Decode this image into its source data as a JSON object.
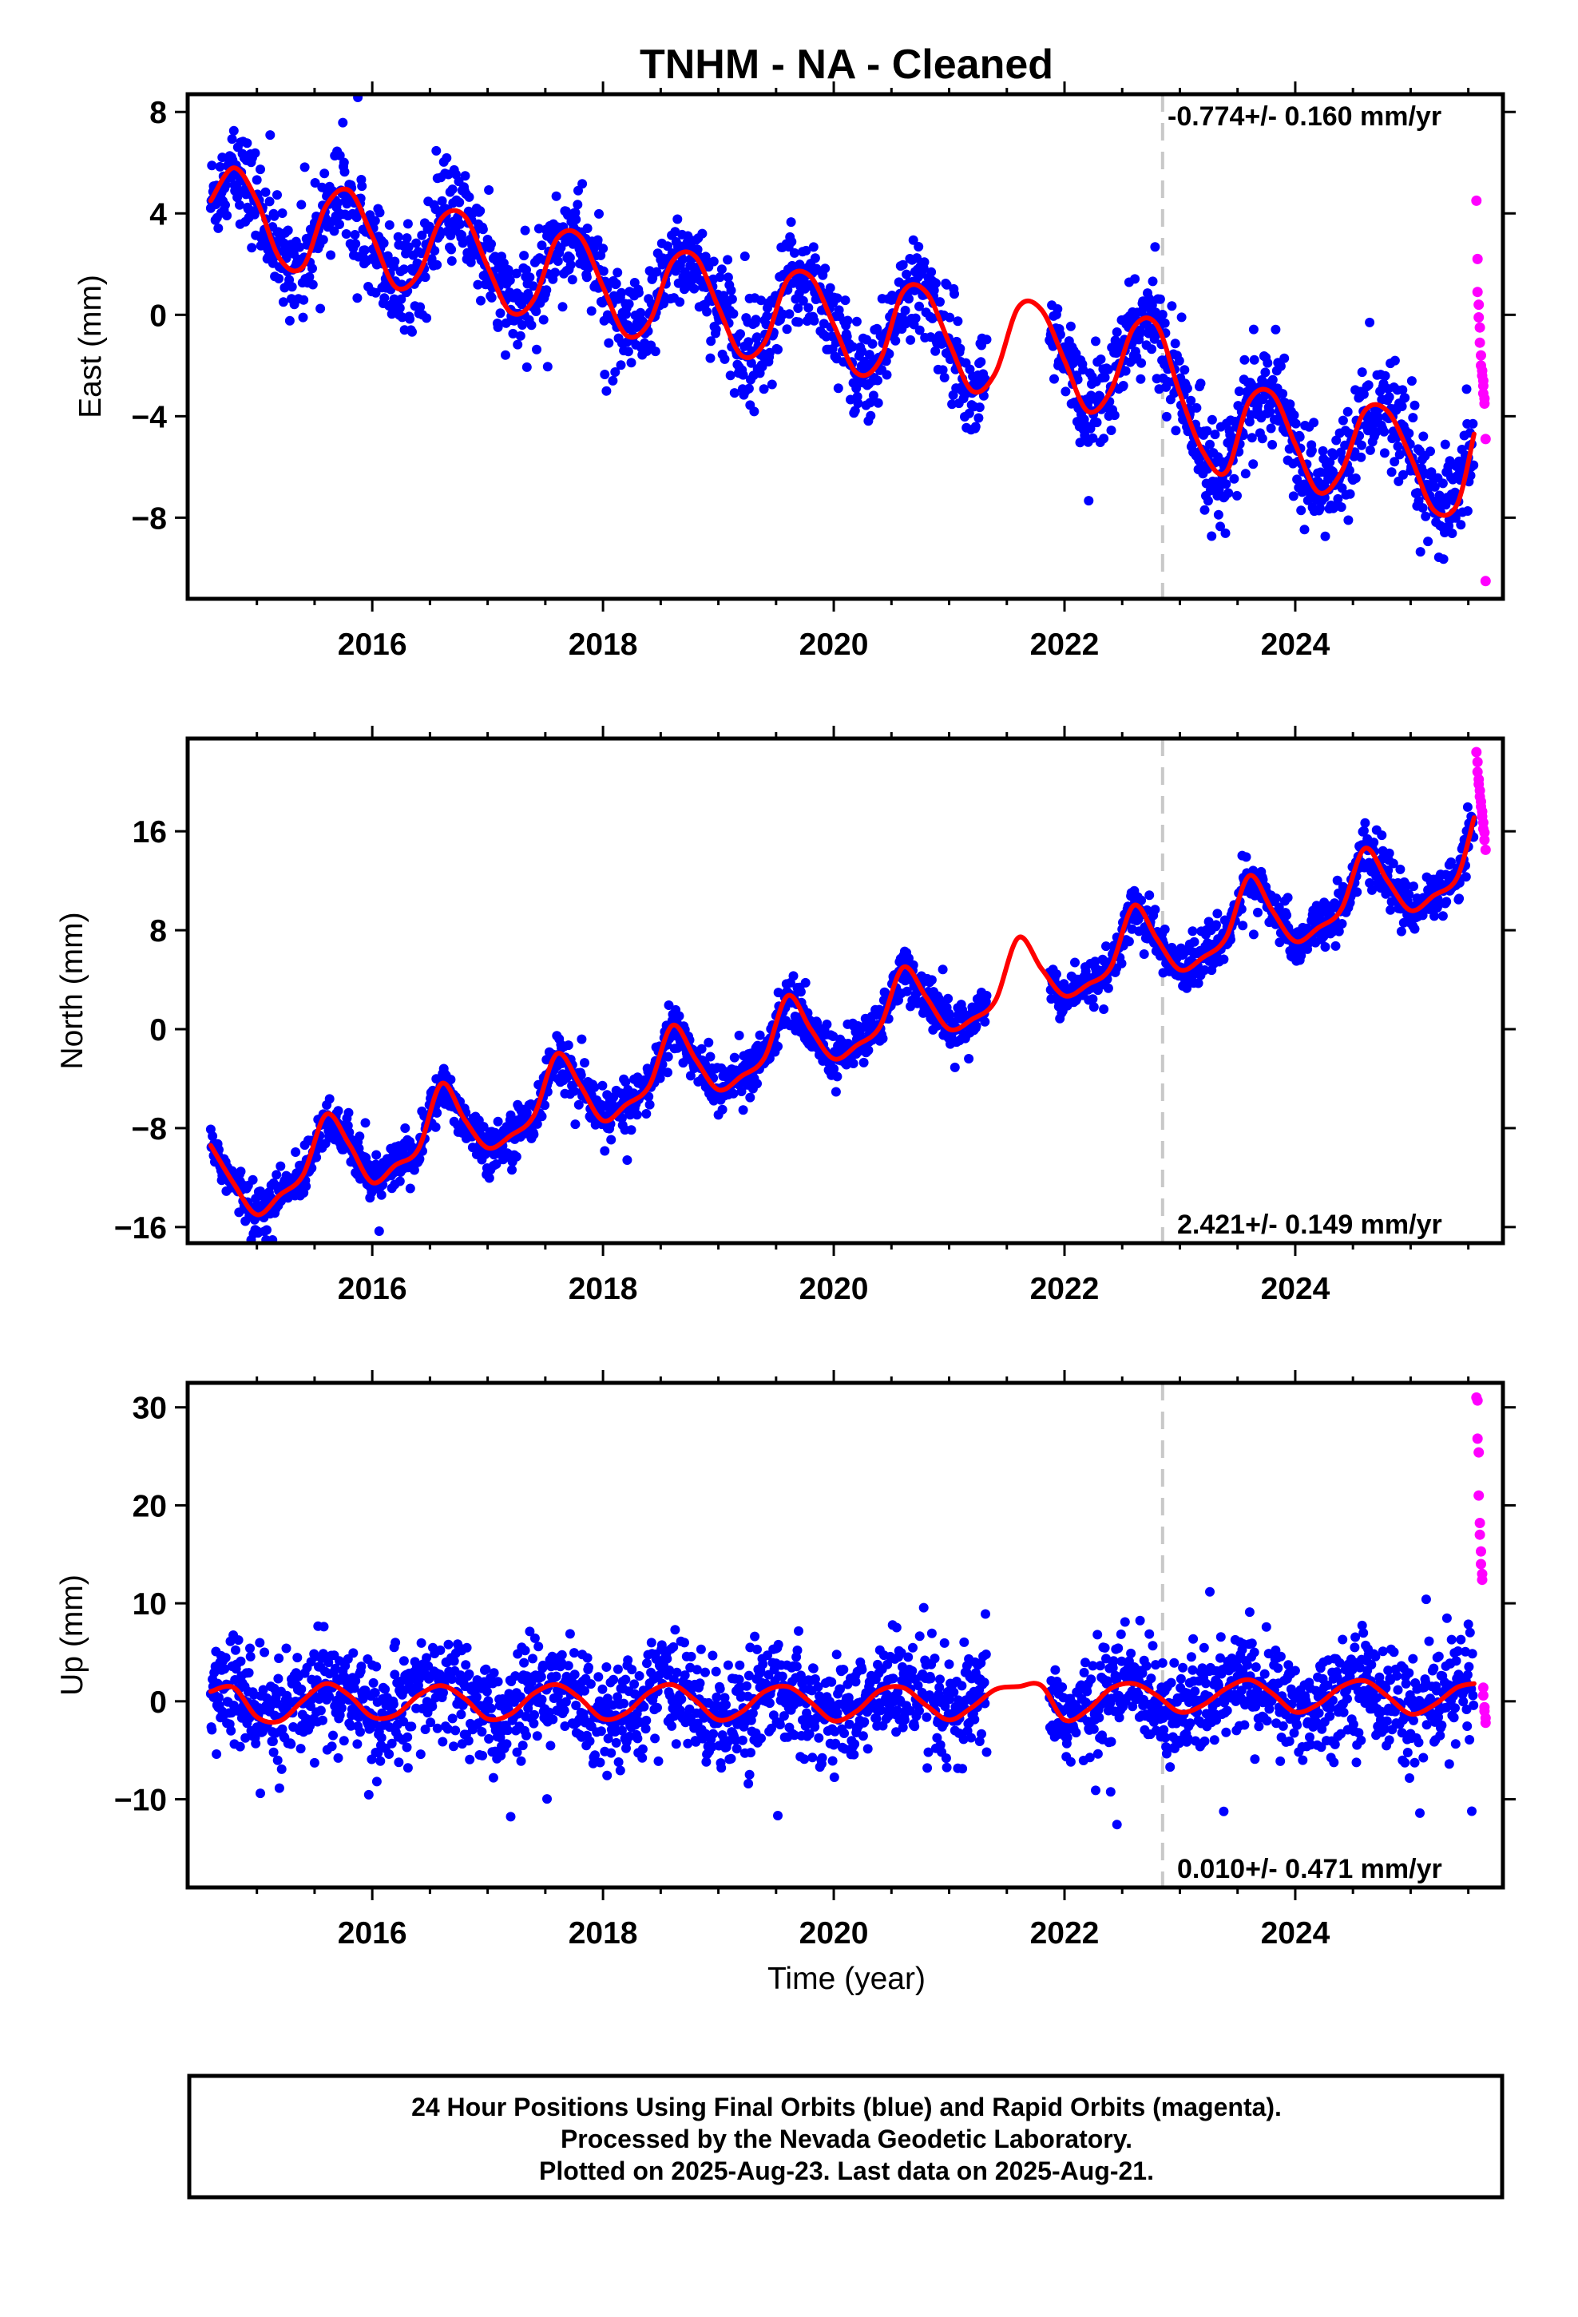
{
  "title": "TNHM  - NA - Cleaned",
  "xlabel": "Time (year)",
  "footer": {
    "line1": "24 Hour Positions Using Final Orbits (blue) and Rapid Orbits (magenta).",
    "line2": "Processed by the Nevada Geodetic Laboratory.",
    "line3": "Plotted on 2025-Aug-23. Last data on 2025-Aug-21."
  },
  "colors": {
    "final_orbits": "#0000ff",
    "rapid_orbits": "#ff00ff",
    "model_fit": "#ff0000",
    "equipment_change": "#c8c8c8"
  },
  "chart_data": [
    {
      "type": "scatter",
      "name": "east",
      "ylabel": "East (mm)",
      "rate_text": "-0.774+/- 0.160 mm/yr",
      "rate_position": "top-right",
      "xlim": [
        2014.4,
        2025.8
      ],
      "ylim": [
        -11.2,
        8.7
      ],
      "xticks": [
        2016,
        2018,
        2020,
        2022,
        2024
      ],
      "xticklabels": [
        "2016",
        "2018",
        "2020",
        "2022",
        "2024"
      ],
      "yticks": [
        8,
        4,
        0,
        -4,
        -8
      ],
      "yticklabels": [
        "8",
        "4",
        "0",
        "−4",
        "−8"
      ],
      "final_range": [
        2014.6,
        2025.55
      ],
      "gap": [
        2021.33,
        2021.87
      ],
      "equipment_change_year": 2022.85,
      "model_fit": {
        "x": [
          2014.6,
          2014.8,
          2015.0,
          2015.2,
          2015.4,
          2015.6,
          2015.8,
          2016.0,
          2016.2,
          2016.4,
          2016.6,
          2016.8,
          2017.0,
          2017.2,
          2017.4,
          2017.6,
          2017.8,
          2018.0,
          2018.2,
          2018.4,
          2018.6,
          2018.8,
          2019.0,
          2019.2,
          2019.4,
          2019.6,
          2019.8,
          2020.0,
          2020.2,
          2020.4,
          2020.6,
          2020.8,
          2021.0,
          2021.2,
          2021.4,
          2021.6,
          2021.8,
          2022.0,
          2022.2,
          2022.4,
          2022.6,
          2022.8,
          2023.0,
          2023.2,
          2023.4,
          2023.6,
          2023.8,
          2024.0,
          2024.2,
          2024.4,
          2024.6,
          2024.8,
          2025.0,
          2025.2,
          2025.4,
          2025.55
        ],
        "y": [
          4.5,
          5.8,
          4.5,
          2.2,
          1.9,
          4.3,
          4.9,
          3.1,
          1.1,
          1.6,
          3.8,
          3.9,
          1.9,
          0.1,
          0.6,
          3.0,
          3.1,
          1.1,
          -0.8,
          -0.3,
          2.1,
          2.3,
          0.3,
          -1.6,
          -1.1,
          1.4,
          1.5,
          -0.4,
          -2.3,
          -1.8,
          0.9,
          0.9,
          -1.1,
          -3.0,
          -2.3,
          0.3,
          0.2,
          -1.8,
          -3.8,
          -3.0,
          -0.5,
          -0.4,
          -3.1,
          -5.4,
          -6.2,
          -3.4,
          -3.1,
          -5.1,
          -7.0,
          -6.2,
          -3.8,
          -3.8,
          -5.6,
          -7.7,
          -7.5,
          -4.7
        ]
      },
      "rapid_points": {
        "x": [
          2025.57,
          2025.58,
          2025.58,
          2025.59,
          2025.59,
          2025.6,
          2025.6,
          2025.61,
          2025.61,
          2025.62,
          2025.62,
          2025.63,
          2025.63,
          2025.63,
          2025.64,
          2025.64,
          2025.65,
          2025.65
        ],
        "y": [
          4.5,
          2.2,
          0.9,
          0.4,
          -0.1,
          -0.5,
          -1.1,
          -1.6,
          -2.0,
          -2.2,
          -2.4,
          -2.6,
          -2.8,
          -3.1,
          -3.3,
          -3.5,
          -4.9,
          -10.5
        ]
      }
    },
    {
      "type": "scatter",
      "name": "north",
      "ylabel": "North (mm)",
      "rate_text": "2.421+/- 0.149 mm/yr",
      "rate_position": "bottom-right",
      "xlim": [
        2014.4,
        2025.8
      ],
      "ylim": [
        -17.3,
        23.5
      ],
      "xticks": [
        2016,
        2018,
        2020,
        2022,
        2024
      ],
      "xticklabels": [
        "2016",
        "2018",
        "2020",
        "2022",
        "2024"
      ],
      "yticks": [
        16,
        8,
        0,
        -8,
        -16
      ],
      "yticklabels": [
        "16",
        "8",
        "0",
        "−8",
        "−16"
      ],
      "final_range": [
        2014.6,
        2025.55
      ],
      "gap": [
        2021.33,
        2021.87
      ],
      "equipment_change_year": 2022.85,
      "model_fit": {
        "x": [
          2014.6,
          2014.8,
          2015.0,
          2015.2,
          2015.4,
          2015.6,
          2015.8,
          2016.0,
          2016.2,
          2016.4,
          2016.6,
          2016.8,
          2017.0,
          2017.2,
          2017.4,
          2017.6,
          2017.8,
          2018.0,
          2018.2,
          2018.4,
          2018.6,
          2018.8,
          2019.0,
          2019.2,
          2019.4,
          2019.6,
          2019.8,
          2020.0,
          2020.2,
          2020.4,
          2020.6,
          2020.8,
          2021.0,
          2021.2,
          2021.4,
          2021.6,
          2021.8,
          2022.0,
          2022.2,
          2022.4,
          2022.6,
          2022.8,
          2023.0,
          2023.2,
          2023.4,
          2023.6,
          2023.8,
          2024.0,
          2024.2,
          2024.4,
          2024.6,
          2024.8,
          2025.0,
          2025.2,
          2025.4,
          2025.55
        ],
        "y": [
          -9.4,
          -12.5,
          -15.0,
          -13.4,
          -11.8,
          -6.9,
          -9.3,
          -12.4,
          -11.0,
          -9.7,
          -4.4,
          -7.3,
          -9.6,
          -8.6,
          -7.0,
          -2.0,
          -4.5,
          -7.4,
          -6.1,
          -4.6,
          0.3,
          -2.4,
          -4.9,
          -3.8,
          -2.3,
          2.7,
          0.0,
          -2.4,
          -1.3,
          0.2,
          5.0,
          2.6,
          0.0,
          0.8,
          2.3,
          7.4,
          4.9,
          2.7,
          3.6,
          5.0,
          10.0,
          7.3,
          4.8,
          5.8,
          7.4,
          12.4,
          9.6,
          7.1,
          8.2,
          9.7,
          14.6,
          12.0,
          9.6,
          10.8,
          12.2,
          17.1
        ]
      },
      "rapid_points": {
        "x": [
          2025.57,
          2025.58,
          2025.58,
          2025.59,
          2025.59,
          2025.6,
          2025.6,
          2025.61,
          2025.61,
          2025.62,
          2025.62,
          2025.63,
          2025.63,
          2025.64,
          2025.64,
          2025.65
        ],
        "y": [
          22.4,
          21.6,
          20.8,
          20.2,
          19.8,
          19.3,
          18.8,
          18.4,
          18.0,
          17.6,
          17.2,
          16.7,
          16.2,
          15.9,
          15.3,
          14.5
        ]
      }
    },
    {
      "type": "scatter",
      "name": "up",
      "ylabel": "Up (mm)",
      "rate_text": "0.010+/- 0.471 mm/yr",
      "rate_position": "bottom-right",
      "xlim": [
        2014.4,
        2025.8
      ],
      "ylim": [
        -19.0,
        32.5
      ],
      "xticks": [
        2016,
        2018,
        2020,
        2022,
        2024
      ],
      "xticklabels": [
        "2016",
        "2018",
        "2020",
        "2022",
        "2024"
      ],
      "yticks": [
        30,
        20,
        10,
        0,
        -10
      ],
      "yticklabels": [
        "30",
        "20",
        "10",
        "0",
        "−10"
      ],
      "final_range": [
        2014.6,
        2025.55
      ],
      "gap": [
        2021.33,
        2021.87
      ],
      "equipment_change_year": 2022.85,
      "model_fit": {
        "x": [
          2014.6,
          2014.8,
          2015.0,
          2015.2,
          2015.4,
          2015.6,
          2015.8,
          2016.0,
          2016.2,
          2016.4,
          2016.6,
          2016.8,
          2017.0,
          2017.2,
          2017.4,
          2017.6,
          2017.8,
          2018.0,
          2018.2,
          2018.4,
          2018.6,
          2018.8,
          2019.0,
          2019.2,
          2019.4,
          2019.6,
          2019.8,
          2020.0,
          2020.2,
          2020.4,
          2020.6,
          2020.8,
          2021.0,
          2021.2,
          2021.4,
          2021.6,
          2021.8,
          2022.0,
          2022.2,
          2022.4,
          2022.6,
          2022.8,
          2023.0,
          2023.2,
          2023.4,
          2023.6,
          2023.8,
          2024.0,
          2024.2,
          2024.4,
          2024.6,
          2024.8,
          2025.0,
          2025.2,
          2025.4,
          2025.55
        ],
        "y": [
          1.0,
          1.4,
          -1.6,
          -2.0,
          0.1,
          1.8,
          0.6,
          -1.6,
          -1.4,
          0.6,
          1.6,
          0.3,
          -1.8,
          -1.3,
          0.8,
          1.7,
          0.3,
          -1.8,
          -1.2,
          0.9,
          1.7,
          0.1,
          -1.9,
          -1.1,
          1.0,
          1.5,
          -0.1,
          -2.0,
          -1.0,
          1.1,
          1.4,
          -0.4,
          -1.9,
          -0.6,
          1.2,
          1.5,
          1.6,
          -1.9,
          -0.9,
          1.3,
          1.8,
          0.6,
          -1.1,
          -0.4,
          1.3,
          2.2,
          0.8,
          -1.1,
          -0.3,
          1.5,
          2.1,
          0.5,
          -1.3,
          -0.4,
          1.4,
          1.8
        ]
      },
      "rapid_points": {
        "x": [
          2025.57,
          2025.58,
          2025.58,
          2025.59,
          2025.59,
          2025.6,
          2025.6,
          2025.61,
          2025.61,
          2025.62,
          2025.62,
          2025.63,
          2025.63,
          2025.64,
          2025.64,
          2025.65,
          2025.65
        ],
        "y": [
          31.0,
          30.7,
          26.8,
          25.4,
          21.0,
          18.2,
          17.0,
          15.3,
          14.0,
          13.0,
          12.4,
          1.4,
          0.6,
          -0.6,
          -1.0,
          -1.7,
          -2.2
        ]
      }
    }
  ]
}
